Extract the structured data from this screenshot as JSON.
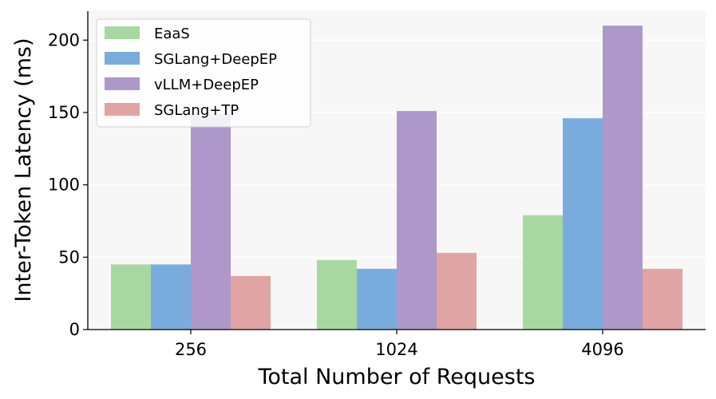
{
  "chart_data": {
    "type": "bar",
    "categories": [
      "256",
      "1024",
      "4096"
    ],
    "series": [
      {
        "name": "EaaS",
        "values": [
          45,
          48,
          79
        ],
        "color": "#a8d8a2"
      },
      {
        "name": "SGLang+DeepEP",
        "values": [
          45,
          42,
          146
        ],
        "color": "#79acdd"
      },
      {
        "name": "vLLM+DeepEP",
        "values": [
          149,
          151,
          210
        ],
        "color": "#ad98c9"
      },
      {
        "name": "SGLang+TP",
        "values": [
          37,
          53,
          42
        ],
        "color": "#e0a4a4"
      }
    ],
    "xlabel": "Total Number of Requests",
    "ylabel": "Inter-Token Latency (ms)",
    "ylim": [
      0,
      220
    ],
    "yticks": [
      "0",
      "50",
      "100",
      "150",
      "200"
    ],
    "grid": "horizontal",
    "legend_position": "top-left",
    "background_color": "#f7f7f7"
  }
}
